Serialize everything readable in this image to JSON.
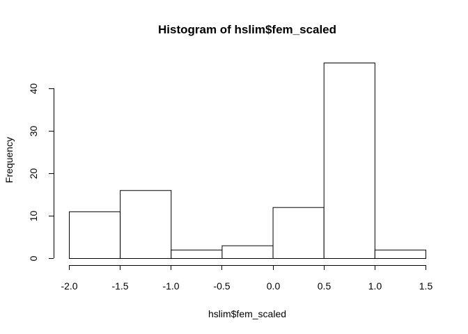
{
  "chart_data": {
    "type": "bar",
    "title": "Histogram of hslim$fem_scaled",
    "xlabel": "hslim$fem_scaled",
    "ylabel": "Frequency",
    "bins": [
      {
        "start": -2.0,
        "end": -1.5,
        "count": 11
      },
      {
        "start": -1.5,
        "end": -1.0,
        "count": 16
      },
      {
        "start": -1.0,
        "end": -0.5,
        "count": 2
      },
      {
        "start": -0.5,
        "end": 0.0,
        "count": 3
      },
      {
        "start": 0.0,
        "end": 0.5,
        "count": 12
      },
      {
        "start": 0.5,
        "end": 1.0,
        "count": 46
      },
      {
        "start": 1.0,
        "end": 1.5,
        "count": 2
      }
    ],
    "xlim": [
      -2.0,
      1.5
    ],
    "ylim": [
      0,
      46
    ],
    "x_ticks": [
      -2.0,
      -1.5,
      -1.0,
      -0.5,
      0.0,
      0.5,
      1.0,
      1.5
    ],
    "x_tick_labels": [
      "-2.0",
      "-1.5",
      "-1.0",
      "-0.5",
      "0.0",
      "0.5",
      "1.0",
      "1.5"
    ],
    "y_ticks": [
      0,
      10,
      20,
      30,
      40
    ],
    "y_tick_labels": [
      "0",
      "10",
      "20",
      "30",
      "40"
    ],
    "grid": false,
    "legend": "none",
    "colors": {
      "bar_fill": "#ffffff",
      "bar_stroke": "#000000",
      "text": "#000000"
    }
  }
}
